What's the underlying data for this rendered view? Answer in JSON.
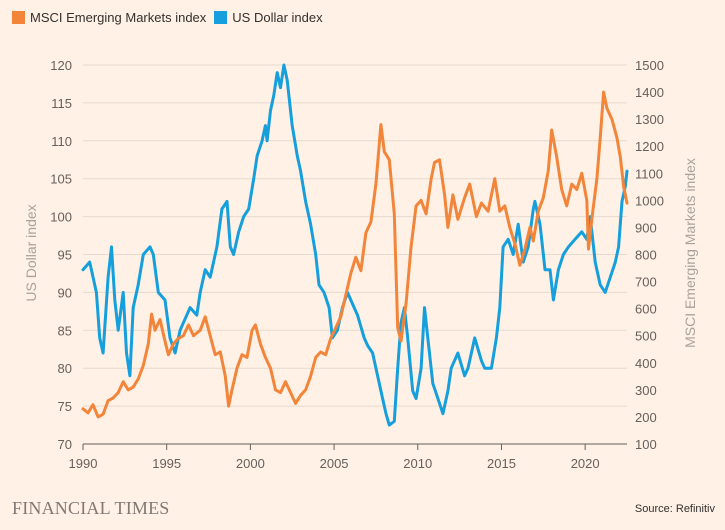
{
  "legend": [
    {
      "label": "MSCI Emerging Markets index",
      "color": "#f2853a"
    },
    {
      "label": "US Dollar index",
      "color": "#159fdc"
    }
  ],
  "footer": {
    "brand": "FINANCIAL TIMES",
    "source": "Source: Refinitiv"
  },
  "chart_data": {
    "type": "line",
    "x_ticks": [
      1990,
      1995,
      2000,
      2005,
      2010,
      2015,
      2020
    ],
    "xlim": [
      1990,
      2022.5
    ],
    "left_axis": {
      "label": "US Dollar index",
      "ylim": [
        70,
        120
      ],
      "ticks": [
        70,
        75,
        80,
        85,
        90,
        95,
        100,
        105,
        110,
        115,
        120
      ]
    },
    "right_axis": {
      "label": "MSCI Emerging Markets index",
      "ylim": [
        100,
        1500
      ],
      "ticks": [
        100,
        200,
        300,
        400,
        500,
        600,
        700,
        800,
        900,
        1000,
        1100,
        1200,
        1300,
        1400,
        1500
      ]
    },
    "grid": "horizontal",
    "legend_position": "top-left",
    "series": [
      {
        "name": "US Dollar index",
        "axis": "left",
        "color": "#159fdc",
        "points": [
          [
            1990.0,
            93
          ],
          [
            1990.4,
            94
          ],
          [
            1990.8,
            90
          ],
          [
            1991.0,
            84
          ],
          [
            1991.2,
            82
          ],
          [
            1991.5,
            92
          ],
          [
            1991.7,
            96
          ],
          [
            1991.9,
            89
          ],
          [
            1992.1,
            85
          ],
          [
            1992.4,
            90
          ],
          [
            1992.6,
            82
          ],
          [
            1992.8,
            79
          ],
          [
            1993.0,
            88
          ],
          [
            1993.3,
            91
          ],
          [
            1993.6,
            95
          ],
          [
            1994.0,
            96
          ],
          [
            1994.2,
            95
          ],
          [
            1994.5,
            90
          ],
          [
            1994.9,
            89
          ],
          [
            1995.2,
            84
          ],
          [
            1995.5,
            82
          ],
          [
            1995.8,
            85
          ],
          [
            1996.0,
            86
          ],
          [
            1996.4,
            88
          ],
          [
            1996.8,
            87
          ],
          [
            1997.0,
            90
          ],
          [
            1997.3,
            93
          ],
          [
            1997.6,
            92
          ],
          [
            1998.0,
            96
          ],
          [
            1998.3,
            101
          ],
          [
            1998.6,
            102
          ],
          [
            1998.8,
            96
          ],
          [
            1999.0,
            95
          ],
          [
            1999.3,
            98
          ],
          [
            1999.6,
            100
          ],
          [
            1999.9,
            101
          ],
          [
            2000.2,
            105
          ],
          [
            2000.4,
            108
          ],
          [
            2000.7,
            110
          ],
          [
            2000.9,
            112
          ],
          [
            2001.0,
            110
          ],
          [
            2001.2,
            114
          ],
          [
            2001.4,
            116
          ],
          [
            2001.6,
            119
          ],
          [
            2001.8,
            117
          ],
          [
            2002.0,
            120
          ],
          [
            2002.2,
            118
          ],
          [
            2002.5,
            112
          ],
          [
            2002.8,
            108
          ],
          [
            2003.0,
            106
          ],
          [
            2003.3,
            102
          ],
          [
            2003.6,
            99
          ],
          [
            2003.9,
            95
          ],
          [
            2004.1,
            91
          ],
          [
            2004.4,
            90
          ],
          [
            2004.7,
            88
          ],
          [
            2004.9,
            84
          ],
          [
            2005.2,
            85
          ],
          [
            2005.5,
            88
          ],
          [
            2005.8,
            90
          ],
          [
            2006.0,
            89
          ],
          [
            2006.4,
            87
          ],
          [
            2006.8,
            84
          ],
          [
            2007.0,
            83
          ],
          [
            2007.3,
            82
          ],
          [
            2007.6,
            79
          ],
          [
            2007.9,
            76
          ],
          [
            2008.1,
            74
          ],
          [
            2008.3,
            72.5
          ],
          [
            2008.6,
            73
          ],
          [
            2008.8,
            80
          ],
          [
            2009.0,
            86
          ],
          [
            2009.2,
            88
          ],
          [
            2009.4,
            84
          ],
          [
            2009.7,
            77
          ],
          [
            2009.9,
            76
          ],
          [
            2010.2,
            80
          ],
          [
            2010.4,
            88
          ],
          [
            2010.6,
            84
          ],
          [
            2010.9,
            78
          ],
          [
            2011.2,
            76
          ],
          [
            2011.5,
            74
          ],
          [
            2011.8,
            77
          ],
          [
            2012.0,
            80
          ],
          [
            2012.4,
            82
          ],
          [
            2012.8,
            79
          ],
          [
            2013.0,
            80
          ],
          [
            2013.4,
            84
          ],
          [
            2013.8,
            81
          ],
          [
            2014.0,
            80
          ],
          [
            2014.4,
            80
          ],
          [
            2014.7,
            84
          ],
          [
            2014.9,
            88
          ],
          [
            2015.1,
            96
          ],
          [
            2015.4,
            97
          ],
          [
            2015.7,
            95
          ],
          [
            2016.0,
            99
          ],
          [
            2016.3,
            94
          ],
          [
            2016.6,
            96
          ],
          [
            2016.9,
            101
          ],
          [
            2017.0,
            102
          ],
          [
            2017.3,
            99
          ],
          [
            2017.6,
            93
          ],
          [
            2017.9,
            93
          ],
          [
            2018.1,
            89
          ],
          [
            2018.4,
            93
          ],
          [
            2018.7,
            95
          ],
          [
            2019.0,
            96
          ],
          [
            2019.4,
            97
          ],
          [
            2019.8,
            98
          ],
          [
            2020.1,
            97
          ],
          [
            2020.3,
            100
          ],
          [
            2020.6,
            94
          ],
          [
            2020.9,
            91
          ],
          [
            2021.2,
            90
          ],
          [
            2021.5,
            92
          ],
          [
            2021.8,
            94
          ],
          [
            2022.0,
            96
          ],
          [
            2022.2,
            102
          ],
          [
            2022.4,
            104
          ],
          [
            2022.5,
            106
          ]
        ]
      },
      {
        "name": "MSCI Emerging Markets index",
        "axis": "right",
        "color": "#f2853a",
        "points": [
          [
            1990.0,
            230
          ],
          [
            1990.3,
            215
          ],
          [
            1990.6,
            245
          ],
          [
            1990.9,
            200
          ],
          [
            1991.2,
            210
          ],
          [
            1991.5,
            260
          ],
          [
            1991.8,
            270
          ],
          [
            1992.1,
            290
          ],
          [
            1992.4,
            330
          ],
          [
            1992.7,
            300
          ],
          [
            1993.0,
            310
          ],
          [
            1993.3,
            340
          ],
          [
            1993.6,
            390
          ],
          [
            1993.9,
            470
          ],
          [
            1994.1,
            580
          ],
          [
            1994.3,
            520
          ],
          [
            1994.6,
            560
          ],
          [
            1994.9,
            480
          ],
          [
            1995.1,
            430
          ],
          [
            1995.4,
            470
          ],
          [
            1995.7,
            490
          ],
          [
            1996.0,
            500
          ],
          [
            1996.3,
            540
          ],
          [
            1996.6,
            500
          ],
          [
            1997.0,
            520
          ],
          [
            1997.3,
            570
          ],
          [
            1997.6,
            500
          ],
          [
            1997.9,
            430
          ],
          [
            1998.2,
            440
          ],
          [
            1998.5,
            350
          ],
          [
            1998.7,
            240
          ],
          [
            1998.9,
            300
          ],
          [
            1999.2,
            380
          ],
          [
            1999.5,
            430
          ],
          [
            1999.8,
            420
          ],
          [
            2000.1,
            520
          ],
          [
            2000.3,
            540
          ],
          [
            2000.6,
            470
          ],
          [
            2000.9,
            420
          ],
          [
            2001.2,
            380
          ],
          [
            2001.5,
            300
          ],
          [
            2001.8,
            290
          ],
          [
            2002.1,
            330
          ],
          [
            2002.4,
            290
          ],
          [
            2002.7,
            250
          ],
          [
            2003.0,
            280
          ],
          [
            2003.3,
            300
          ],
          [
            2003.6,
            350
          ],
          [
            2003.9,
            420
          ],
          [
            2004.2,
            440
          ],
          [
            2004.5,
            430
          ],
          [
            2004.8,
            490
          ],
          [
            2005.1,
            530
          ],
          [
            2005.4,
            570
          ],
          [
            2005.7,
            650
          ],
          [
            2006.0,
            730
          ],
          [
            2006.3,
            790
          ],
          [
            2006.6,
            740
          ],
          [
            2006.9,
            880
          ],
          [
            2007.2,
            920
          ],
          [
            2007.5,
            1060
          ],
          [
            2007.8,
            1280
          ],
          [
            2008.0,
            1180
          ],
          [
            2008.3,
            1150
          ],
          [
            2008.6,
            950
          ],
          [
            2008.8,
            530
          ],
          [
            2009.0,
            480
          ],
          [
            2009.3,
            620
          ],
          [
            2009.6,
            830
          ],
          [
            2009.9,
            980
          ],
          [
            2010.2,
            1000
          ],
          [
            2010.5,
            950
          ],
          [
            2010.8,
            1080
          ],
          [
            2011.0,
            1140
          ],
          [
            2011.3,
            1150
          ],
          [
            2011.6,
            1020
          ],
          [
            2011.8,
            900
          ],
          [
            2012.1,
            1020
          ],
          [
            2012.4,
            930
          ],
          [
            2012.8,
            1010
          ],
          [
            2013.1,
            1060
          ],
          [
            2013.5,
            940
          ],
          [
            2013.8,
            990
          ],
          [
            2014.2,
            960
          ],
          [
            2014.6,
            1080
          ],
          [
            2014.9,
            960
          ],
          [
            2015.2,
            980
          ],
          [
            2015.5,
            900
          ],
          [
            2015.8,
            840
          ],
          [
            2016.1,
            760
          ],
          [
            2016.4,
            820
          ],
          [
            2016.7,
            900
          ],
          [
            2016.9,
            850
          ],
          [
            2017.2,
            960
          ],
          [
            2017.5,
            1010
          ],
          [
            2017.8,
            1110
          ],
          [
            2018.0,
            1260
          ],
          [
            2018.3,
            1160
          ],
          [
            2018.6,
            1040
          ],
          [
            2018.9,
            980
          ],
          [
            2019.2,
            1060
          ],
          [
            2019.5,
            1040
          ],
          [
            2019.8,
            1100
          ],
          [
            2020.1,
            1000
          ],
          [
            2020.2,
            820
          ],
          [
            2020.4,
            930
          ],
          [
            2020.7,
            1080
          ],
          [
            2020.9,
            1230
          ],
          [
            2021.1,
            1400
          ],
          [
            2021.3,
            1340
          ],
          [
            2021.6,
            1300
          ],
          [
            2021.9,
            1230
          ],
          [
            2022.1,
            1160
          ],
          [
            2022.3,
            1050
          ],
          [
            2022.5,
            990
          ]
        ]
      }
    ]
  }
}
